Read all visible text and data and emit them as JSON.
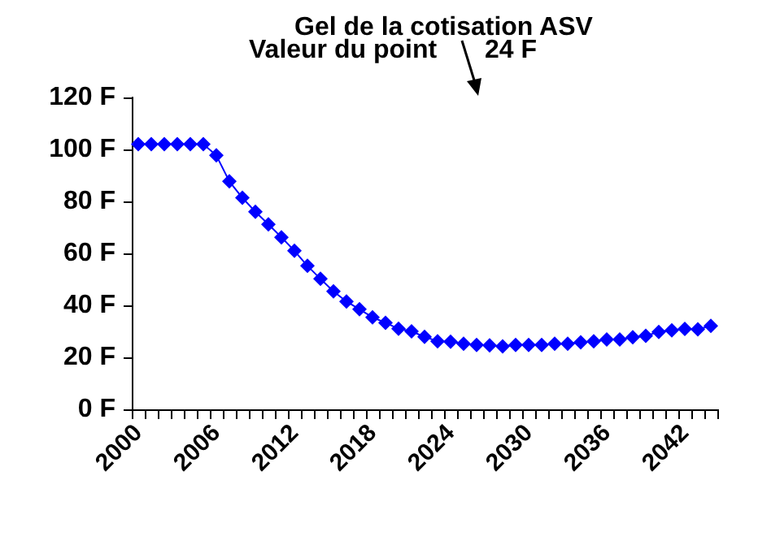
{
  "chart_data": {
    "type": "line",
    "title": "Gel de la cotisation ASV",
    "annotations": [
      "Valeur du point",
      "24 F"
    ],
    "categories": [
      "2000",
      null,
      null,
      null,
      null,
      null,
      "2006",
      null,
      null,
      null,
      null,
      null,
      "2012",
      null,
      null,
      null,
      null,
      null,
      "2018",
      null,
      null,
      null,
      null,
      null,
      "2024",
      null,
      null,
      null,
      null,
      null,
      "2030",
      null,
      null,
      null,
      null,
      null,
      "2036",
      null,
      null,
      null,
      null,
      null,
      "2042",
      null,
      null
    ],
    "series": [
      {
        "color": "#0000ff",
        "values": [
          102,
          102,
          102,
          102,
          102,
          102,
          97.7,
          87.7,
          81.4,
          76,
          71.2,
          66.2,
          61,
          55.2,
          50.2,
          45.4,
          41.5,
          38.5,
          35.4,
          33.3,
          31,
          30,
          27.9,
          26.2,
          26,
          25.2,
          24.8,
          24.6,
          24.2,
          24.8,
          24.8,
          24.8,
          25.2,
          25.2,
          25.8,
          26.2,
          26.9,
          26.9,
          27.7,
          28.3,
          29.8,
          30.4,
          30.9,
          30.8,
          32.1
        ]
      }
    ],
    "ylim": [
      0,
      120
    ],
    "yticks": [
      {
        "value": 0,
        "label": "0 F"
      },
      {
        "value": 20,
        "label": "20 F"
      },
      {
        "value": 40,
        "label": "40 F"
      },
      {
        "value": 60,
        "label": "60 F"
      },
      {
        "value": 80,
        "label": "80 F"
      },
      {
        "value": 100,
        "label": "100 F"
      },
      {
        "value": 120,
        "label": "120 F"
      }
    ],
    "grid": false,
    "marker": "diamond",
    "line_style": "solid"
  }
}
